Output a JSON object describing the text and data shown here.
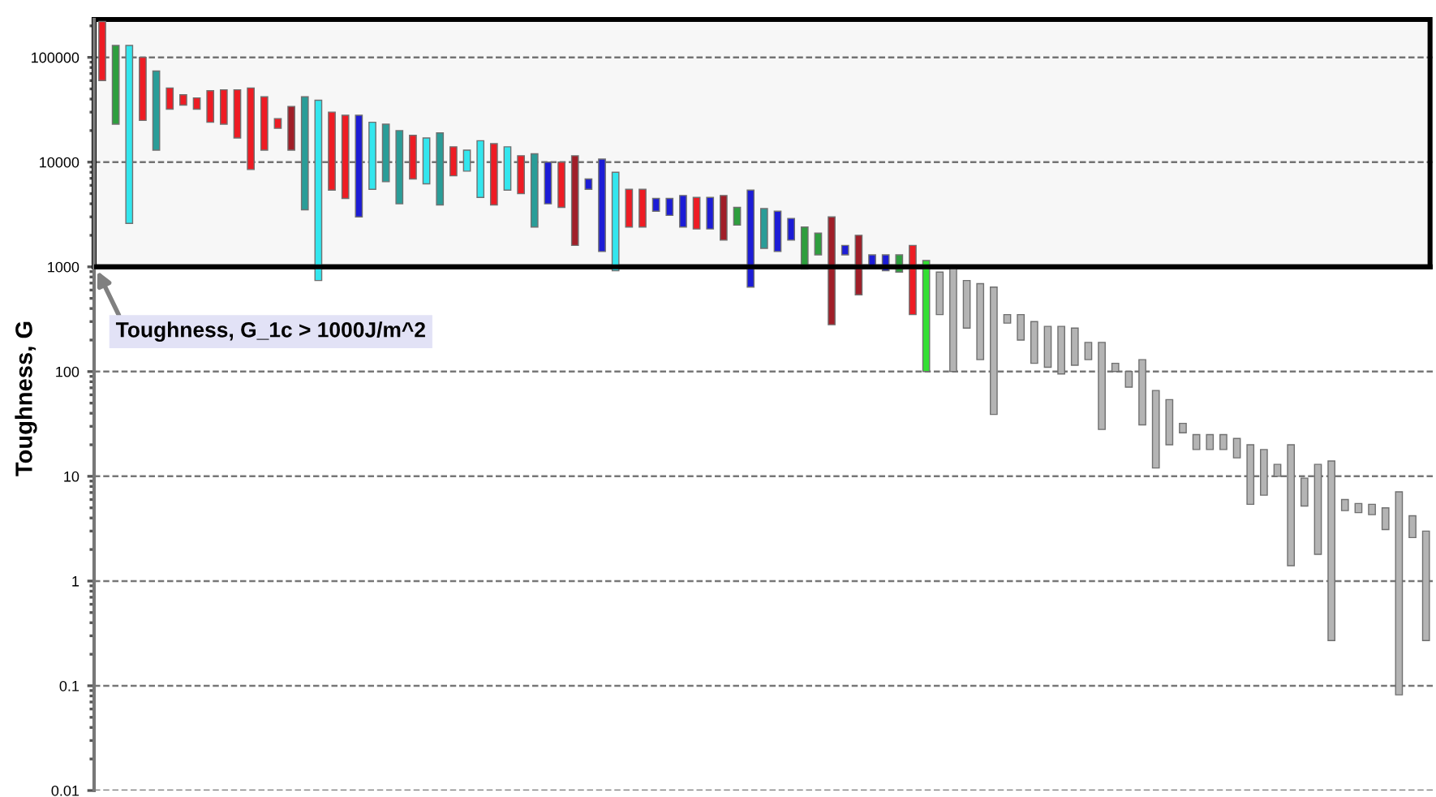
{
  "chart_data": {
    "type": "bar",
    "ylabel": "Toughness, G",
    "categories": [
      null,
      null,
      null,
      null,
      null,
      null,
      null,
      null,
      null,
      null,
      null,
      null,
      null,
      null,
      null,
      null,
      null,
      null,
      null,
      null,
      null,
      null,
      null,
      null,
      null,
      null,
      null,
      null,
      null,
      null,
      null,
      null,
      null,
      null,
      null,
      null,
      null,
      null,
      null,
      null,
      null,
      null,
      null,
      null,
      null,
      null,
      null,
      null,
      null,
      null,
      null,
      null,
      null,
      null,
      null,
      null,
      null,
      null,
      null,
      null,
      null,
      null,
      null,
      null,
      null,
      null,
      null,
      null,
      null,
      null,
      null,
      null,
      null,
      null,
      null,
      null,
      null,
      null,
      null,
      null,
      null,
      null,
      null,
      null,
      null,
      null,
      null,
      null,
      null,
      null,
      null,
      null,
      null,
      null,
      null,
      null,
      null,
      null,
      null
    ],
    "base": [
      60000,
      23000,
      2600,
      25000,
      13000,
      32000,
      35000,
      32000,
      24000,
      23000,
      17000,
      8500,
      13000,
      21000,
      13000,
      3500,
      740,
      5400,
      4500,
      3000,
      5500,
      6500,
      4000,
      6900,
      6200,
      3900,
      7400,
      8200,
      4600,
      3900,
      5400,
      5000,
      2400,
      4000,
      3700,
      1600,
      5500,
      1400,
      920,
      2400,
      2400,
      3400,
      3100,
      2400,
      2300,
      2300,
      1800,
      2500,
      640,
      1500,
      1400,
      1800,
      950,
      1300,
      280,
      1300,
      540,
      1040,
      920,
      890,
      350,
      100,
      350,
      100,
      260,
      130,
      39,
      290,
      200,
      120,
      110,
      95,
      115,
      130,
      28,
      100,
      71,
      31,
      12,
      20,
      26,
      18,
      18,
      18,
      15,
      5.4,
      6.6,
      10,
      1.4,
      5.2,
      1.8,
      0.27,
      4.7,
      4.5,
      4.3,
      3.1,
      0.082,
      2.6,
      0.27
    ],
    "values": [
      160000,
      107000,
      127400,
      75000,
      61000,
      19000,
      9000,
      9000,
      24000,
      26000,
      32000,
      42500,
      29000,
      5000,
      21000,
      38500,
      38260,
      24600,
      23500,
      25000,
      18500,
      16500,
      16000,
      11100,
      10800,
      15100,
      6600,
      4800,
      11400,
      11100,
      8600,
      6500,
      9600,
      6000,
      6300,
      9900,
      1400,
      9300,
      7080,
      3100,
      3100,
      1100,
      1400,
      2400,
      2300,
      2300,
      3000,
      1200,
      4760,
      2100,
      2000,
      1100,
      1450,
      800,
      2720,
      300,
      1460,
      260,
      380,
      410,
      1250,
      1050,
      540,
      880,
      480,
      560,
      601,
      60,
      150,
      180,
      160,
      175,
      145,
      60,
      162,
      20,
      29,
      99,
      54,
      34,
      6,
      7,
      7,
      7,
      8,
      14.6,
      11.4,
      3,
      18.6,
      4.4,
      11.2,
      13.73,
      1.3,
      1.0,
      1.1,
      1.9,
      7.018,
      1.6,
      2.73
    ],
    "colors": [
      "#ee1c24",
      "#2e9e3e",
      "#33e6ee",
      "#ee1c24",
      "#2a9d98",
      "#ee1c24",
      "#ee1c24",
      "#ee1c24",
      "#ee1c24",
      "#ee1c24",
      "#ee1c24",
      "#ee1c24",
      "#ee1c24",
      "#ee1c24",
      "#a01e28",
      "#2a9d98",
      "#33e6ee",
      "#ee1c24",
      "#ee1c24",
      "#1c1cd6",
      "#33e6ee",
      "#2a9d98",
      "#2a9d98",
      "#ee1c24",
      "#33e6ee",
      "#2a9d98",
      "#ee1c24",
      "#33e6ee",
      "#33e6ee",
      "#ee1c24",
      "#33e6ee",
      "#ee1c24",
      "#2a9d98",
      "#1c1cd6",
      "#ee1c24",
      "#a01e28",
      "#1c1cd6",
      "#1c1cd6",
      "#33e6ee",
      "#ee1c24",
      "#ee1c24",
      "#1c1cd6",
      "#1c1cd6",
      "#1c1cd6",
      "#ee1c24",
      "#1c1cd6",
      "#a01e28",
      "#2e9e3e",
      "#1c1cd6",
      "#2a9d98",
      "#1c1cd6",
      "#1c1cd6",
      "#2e9e3e",
      "#2e9e3e",
      "#a01e28",
      "#1c1cd6",
      "#a01e28",
      "#1c1cd6",
      "#1c1cd6",
      "#2e9e3e",
      "#ee1c24",
      "#33e033",
      "#b4b4b4",
      "#b4b4b4",
      "#b4b4b4",
      "#b4b4b4",
      "#b4b4b4",
      "#b4b4b4",
      "#b4b4b4",
      "#b4b4b4",
      "#b4b4b4",
      "#b4b4b4",
      "#b4b4b4",
      "#b4b4b4",
      "#b4b4b4",
      "#b4b4b4",
      "#b4b4b4",
      "#b4b4b4",
      "#b4b4b4",
      "#b4b4b4",
      "#b4b4b4",
      "#b4b4b4",
      "#b4b4b4",
      "#b4b4b4",
      "#b4b4b4",
      "#b4b4b4",
      "#b4b4b4",
      "#b4b4b4",
      "#b4b4b4",
      "#b4b4b4",
      "#b4b4b4",
      "#b4b4b4",
      "#b4b4b4",
      "#b4b4b4",
      "#b4b4b4",
      "#b4b4b4",
      "#b4b4b4",
      "#b4b4b4",
      "#b4b4b4"
    ],
    "log": "y",
    "ylim": [
      0.01,
      230000
    ],
    "yticks": [
      {
        "value": 0.01,
        "label": "0.01"
      },
      {
        "value": 0.1,
        "label": "0.1"
      },
      1,
      10,
      100,
      1000,
      10000,
      100000
    ],
    "tick_labels": "y",
    "grid": "y",
    "ref_lines": [
      {
        "axis": "y",
        "value": 1000,
        "color": "#000000"
      }
    ],
    "bands": [
      {
        "axis": "y",
        "from": 1000,
        "to": 230000,
        "color": "#000000"
      }
    ],
    "annotations": [
      {
        "text": "Toughness, G_1c > 1000J/m^2",
        "y": 1000
      }
    ]
  }
}
